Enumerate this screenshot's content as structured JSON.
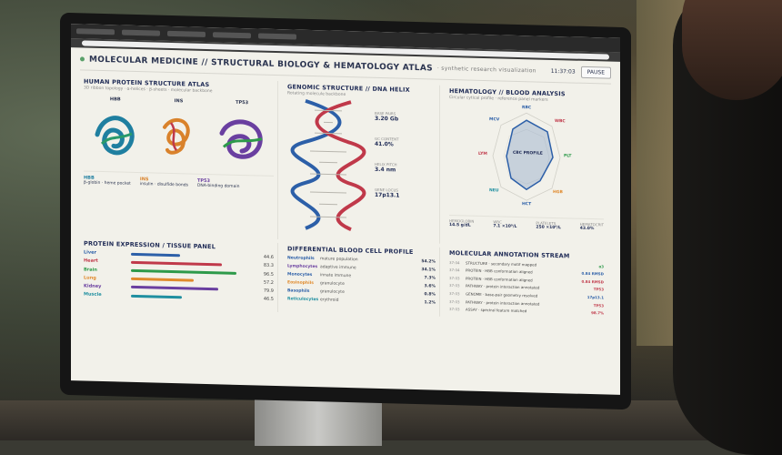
{
  "header": {
    "title": "MOLECULAR MEDICINE // STRUCTURAL BIOLOGY & HEMATOLOGY ATLAS",
    "subtitle": "· synthetic research visualization",
    "clock": "11:37:03",
    "pause_label": "PAUSE"
  },
  "protein_panel": {
    "title": "HUMAN PROTEIN STRUCTURE ATLAS",
    "subtitle": "3D ribbon topology · α-helices · β-sheets · molecular backbone",
    "proteins": [
      {
        "name": "HBB",
        "color": "#1f7fa0",
        "legend_title": "HBB",
        "legend_desc": "β-globin · heme pocket"
      },
      {
        "name": "INS",
        "color": "#d9822b",
        "legend_title": "INS",
        "legend_desc": "insulin · disulfide bonds"
      },
      {
        "name": "TP53",
        "color": "#6a3fa0",
        "legend_title": "TP53",
        "legend_desc": "DNA-binding domain"
      }
    ]
  },
  "genomic_panel": {
    "title": "GENOMIC STRUCTURE // DNA HELIX",
    "subtitle": "Rotating molecule backbone",
    "stats": [
      {
        "label": "BASE PAIRS",
        "value": "3.20 Gb"
      },
      {
        "label": "GC CONTENT",
        "value": "41.0%"
      },
      {
        "label": "HELIX PITCH",
        "value": "3.4 nm"
      },
      {
        "label": "GENE LOCUS",
        "value": "17p13.1"
      }
    ]
  },
  "heme_panel": {
    "title": "HEMATOLOGY // BLOOD ANALYSIS",
    "subtitle": "Circular cytical profile · reference panel markers",
    "center_label": "CBC PROFILE",
    "axes": [
      "RBC",
      "WBC",
      "PLT",
      "HGB",
      "HCT",
      "NEU",
      "LYM",
      "MCV"
    ],
    "stats": [
      {
        "label": "HEMOGLOBIN",
        "value": "14.5 g/dL"
      },
      {
        "label": "WBC",
        "value": "7.1 ×10⁹/L"
      },
      {
        "label": "PLATELETS",
        "value": "250 ×10⁹/L"
      },
      {
        "label": "HEMATOCRIT",
        "value": "43.0%"
      }
    ]
  },
  "expression_panel": {
    "title": "PROTEIN EXPRESSION / TISSUE PANEL",
    "rows": [
      {
        "tissue": "Liver",
        "value": 44.6,
        "label": "44.6",
        "color": "#2c5fa8"
      },
      {
        "tissue": "Heart",
        "value": 83.3,
        "label": "83.3",
        "color": "#c0394a"
      },
      {
        "tissue": "Brain",
        "value": 96.5,
        "label": "96.5",
        "color": "#2e9a4a"
      },
      {
        "tissue": "Lung",
        "value": 57.2,
        "label": "57.2",
        "color": "#e08a2c"
      },
      {
        "tissue": "Kidney",
        "value": 79.9,
        "label": "79.9",
        "color": "#6a3fa0"
      },
      {
        "tissue": "Muscle",
        "value": 46.5,
        "label": "46.5",
        "color": "#1f8fa0"
      }
    ]
  },
  "blood_panel": {
    "title": "DIFFERENTIAL BLOOD CELL PROFILE",
    "rows": [
      {
        "cell": "Neutrophils",
        "role": "mature population",
        "pct": "54.2%"
      },
      {
        "cell": "Lymphocytes",
        "role": "adaptive immune",
        "pct": "34.1%"
      },
      {
        "cell": "Monocytes",
        "role": "innate immune",
        "pct": "7.3%"
      },
      {
        "cell": "Eosinophils",
        "role": "granulocyte",
        "pct": "3.6%"
      },
      {
        "cell": "Basophils",
        "role": "granulocyte",
        "pct": "0.8%"
      },
      {
        "cell": "Reticulocytes",
        "role": "erythroid",
        "pct": "1.2%"
      }
    ]
  },
  "annotation_panel": {
    "title": "MOLECULAR ANNOTATION STREAM",
    "rows": [
      {
        "time": "37:04",
        "text": "STRUCTURE · secondary motif mapped",
        "value": "α3"
      },
      {
        "time": "37:04",
        "text": "PROTEIN · HBB conformation aligned",
        "value": "0.84 RMSD"
      },
      {
        "time": "37:03",
        "text": "PROTEIN · HBB conformation aligned",
        "value": "0.84 RMSD"
      },
      {
        "time": "37:03",
        "text": "PATHWAY · protein interaction annotated",
        "value": "TP53"
      },
      {
        "time": "37:03",
        "text": "GENOME · base-pair geometry resolved",
        "value": "17p13.1"
      },
      {
        "time": "37:03",
        "text": "PATHWAY · protein interaction annotated",
        "value": "TP53"
      },
      {
        "time": "37:03",
        "text": "ASSAY · spectral feature matched",
        "value": "98.7%"
      }
    ]
  }
}
